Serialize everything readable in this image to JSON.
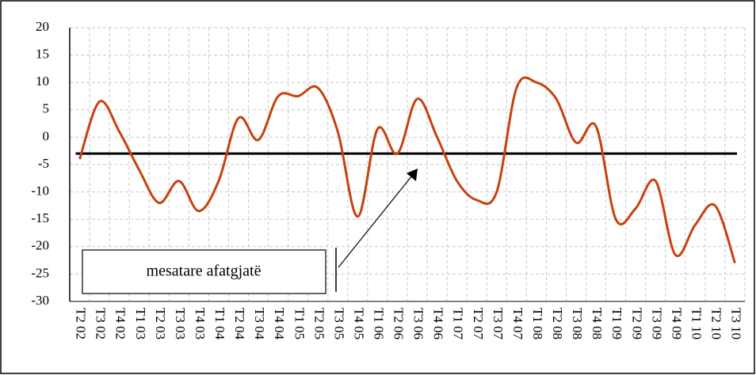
{
  "chart_data": {
    "type": "line",
    "categories": [
      "T2 02",
      "T3 02",
      "T4 02",
      "T1 03",
      "T2 03",
      "T3 03",
      "T4 03",
      "T1 04",
      "T2 04",
      "T3 04",
      "T4 04",
      "T1 05",
      "T2 05",
      "T3 05",
      "T4 05",
      "T1 06",
      "T2 06",
      "T3 06",
      "T4 06",
      "T1 07",
      "T2 07",
      "T3 07",
      "T4 07",
      "T1 08",
      "T2 08",
      "T3 08",
      "T4 08",
      "T1 09",
      "T2 09",
      "T3 09",
      "T4 09",
      "T1 10",
      "T2 10",
      "T3 10"
    ],
    "series": [
      {
        "color": "#c8410e",
        "values": [
          -4,
          6.5,
          1,
          -6,
          -12,
          -8,
          -13.5,
          -8,
          3.5,
          -0.5,
          7.5,
          7.5,
          9,
          1,
          -14.5,
          1.5,
          -3,
          7,
          0,
          -8,
          -11.5,
          -10,
          9,
          10,
          7,
          -1,
          2,
          -15,
          -13,
          -8,
          -21.5,
          -16,
          -12.5,
          -23
        ]
      }
    ],
    "average": -3,
    "annotation": "mesatare afatgjatë",
    "ylim": [
      -30,
      20
    ],
    "yticks": [
      -30,
      -25,
      -20,
      -15,
      -10,
      -5,
      0,
      5,
      10,
      15,
      20
    ],
    "grid": true
  }
}
